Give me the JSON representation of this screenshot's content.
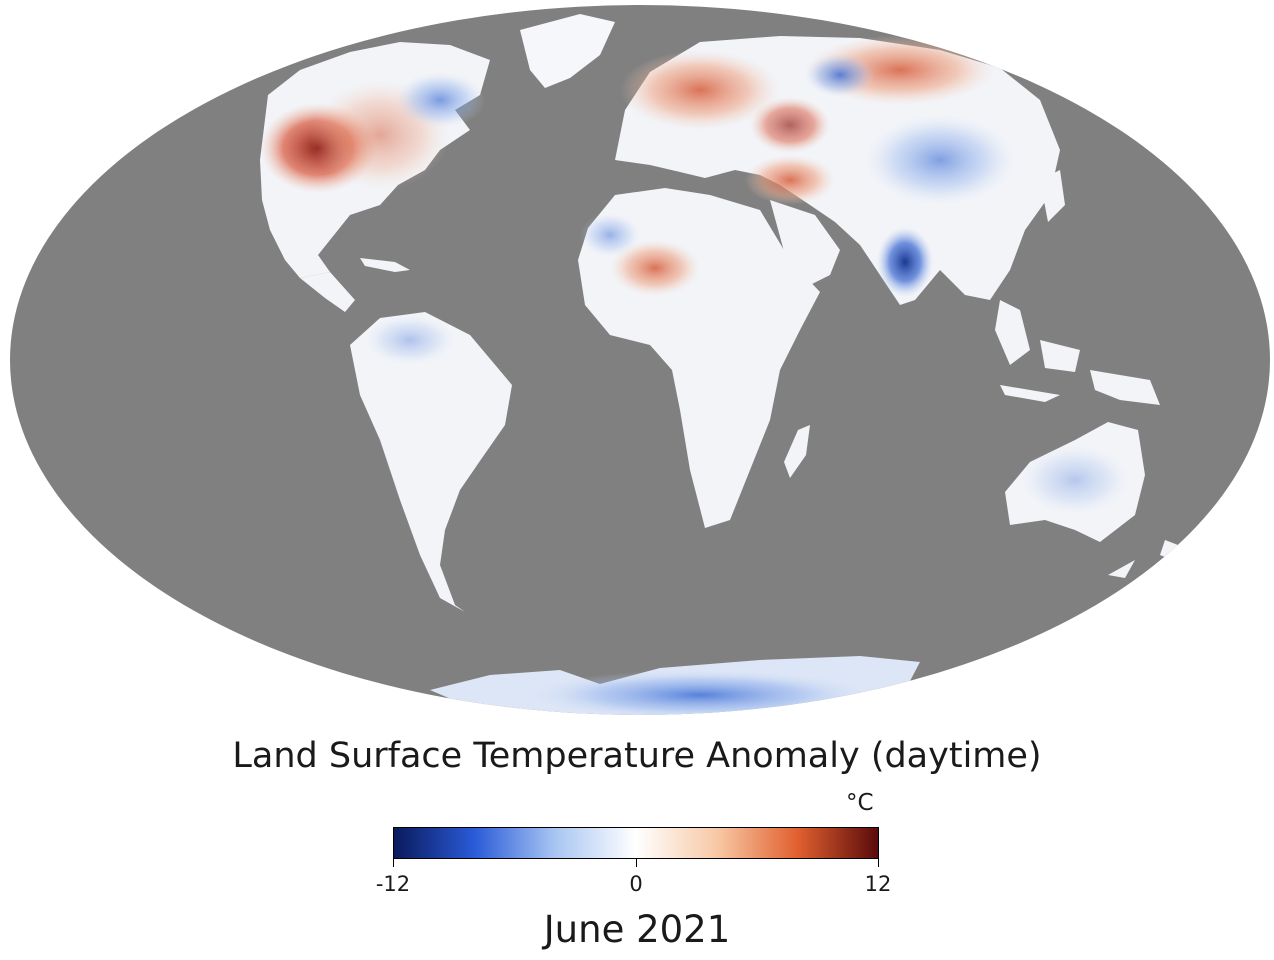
{
  "map": {
    "projection": "mollweide",
    "ocean_color": "#808080",
    "land_base_color": "#f2f4f8"
  },
  "legend": {
    "title": "Land Surface Temperature Anomaly (daytime)",
    "unit": "°C",
    "min_label": "-12",
    "mid_label": "0",
    "max_label": "12",
    "min": -12,
    "mid": 0,
    "max": 12,
    "colors": [
      "#0a1a5c",
      "#2a5bd8",
      "#a9c6f2",
      "#ffffff",
      "#f7c9a6",
      "#e1602f",
      "#5a0b0b"
    ]
  },
  "date": "June 2021"
}
